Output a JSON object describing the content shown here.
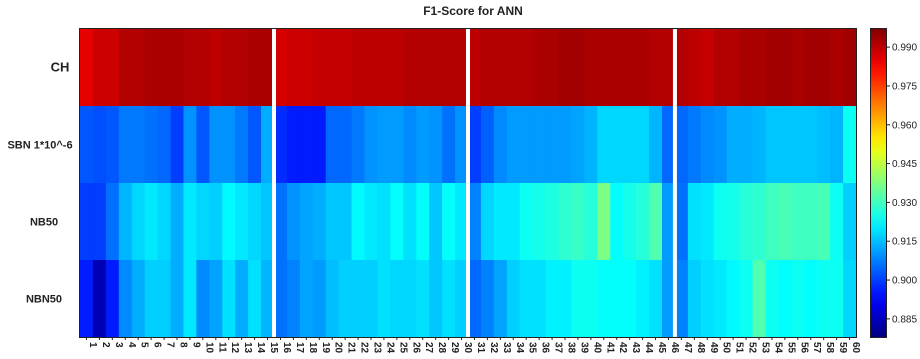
{
  "chart_data": {
    "type": "heatmap",
    "title": "F1-Score for ANN",
    "rows": [
      "CH",
      "SBN 1*10^-6",
      "NB50",
      "NBN50"
    ],
    "columns": [
      1,
      2,
      3,
      4,
      5,
      6,
      7,
      8,
      9,
      10,
      11,
      12,
      13,
      14,
      15,
      16,
      17,
      18,
      19,
      20,
      21,
      22,
      23,
      24,
      25,
      26,
      27,
      28,
      29,
      30,
      31,
      32,
      33,
      34,
      35,
      36,
      37,
      38,
      39,
      40,
      41,
      42,
      43,
      44,
      45,
      46,
      47,
      48,
      49,
      50,
      51,
      52,
      53,
      54,
      55,
      56,
      57,
      58,
      59,
      60
    ],
    "column_groups": [
      [
        1,
        15
      ],
      [
        16,
        30
      ],
      [
        31,
        46
      ],
      [
        47,
        60
      ]
    ],
    "colorbar": {
      "range": [
        0.878,
        0.997
      ],
      "ticks": [
        "0.990",
        "0.975",
        "0.960",
        "0.945",
        "0.930",
        "0.915",
        "0.900",
        "0.885"
      ],
      "colormap": "jet"
    },
    "values": [
      [
        0.985,
        0.988,
        0.988,
        0.991,
        0.991,
        0.992,
        0.992,
        0.992,
        0.991,
        0.991,
        0.99,
        0.991,
        0.991,
        0.992,
        0.992,
        0.987,
        0.988,
        0.988,
        0.989,
        0.989,
        0.989,
        0.99,
        0.99,
        0.99,
        0.99,
        0.991,
        0.991,
        0.991,
        0.991,
        0.991,
        0.99,
        0.991,
        0.991,
        0.991,
        0.991,
        0.992,
        0.992,
        0.993,
        0.993,
        0.992,
        0.992,
        0.992,
        0.992,
        0.992,
        0.991,
        0.991,
        0.991,
        0.99,
        0.989,
        0.991,
        0.991,
        0.992,
        0.992,
        0.993,
        0.993,
        0.992,
        0.993,
        0.993,
        0.992,
        0.993
      ],
      [
        0.903,
        0.902,
        0.903,
        0.907,
        0.907,
        0.906,
        0.905,
        0.9,
        0.91,
        0.903,
        0.91,
        0.91,
        0.907,
        0.903,
        0.913,
        0.898,
        0.896,
        0.896,
        0.896,
        0.905,
        0.905,
        0.907,
        0.91,
        0.911,
        0.911,
        0.909,
        0.911,
        0.91,
        0.906,
        0.91,
        0.9,
        0.904,
        0.909,
        0.911,
        0.911,
        0.911,
        0.911,
        0.911,
        0.912,
        0.914,
        0.918,
        0.918,
        0.918,
        0.918,
        0.914,
        0.905,
        0.905,
        0.907,
        0.909,
        0.91,
        0.913,
        0.913,
        0.914,
        0.916,
        0.916,
        0.916,
        0.916,
        0.915,
        0.914,
        0.924
      ],
      [
        0.9,
        0.9,
        0.906,
        0.914,
        0.918,
        0.92,
        0.918,
        0.913,
        0.92,
        0.918,
        0.917,
        0.922,
        0.92,
        0.918,
        0.916,
        0.906,
        0.91,
        0.912,
        0.913,
        0.916,
        0.916,
        0.922,
        0.92,
        0.919,
        0.923,
        0.919,
        0.923,
        0.916,
        0.923,
        0.92,
        0.908,
        0.918,
        0.92,
        0.92,
        0.924,
        0.925,
        0.926,
        0.928,
        0.929,
        0.927,
        0.937,
        0.923,
        0.925,
        0.927,
        0.932,
        0.911,
        0.906,
        0.919,
        0.92,
        0.924,
        0.925,
        0.927,
        0.928,
        0.93,
        0.931,
        0.93,
        0.93,
        0.931,
        0.924,
        0.917
      ],
      [
        0.896,
        0.884,
        0.896,
        0.909,
        0.913,
        0.917,
        0.917,
        0.913,
        0.92,
        0.909,
        0.912,
        0.919,
        0.913,
        0.919,
        0.914,
        0.906,
        0.908,
        0.912,
        0.911,
        0.915,
        0.917,
        0.917,
        0.917,
        0.919,
        0.918,
        0.918,
        0.919,
        0.916,
        0.919,
        0.917,
        0.905,
        0.908,
        0.912,
        0.917,
        0.919,
        0.919,
        0.921,
        0.921,
        0.924,
        0.924,
        0.923,
        0.923,
        0.923,
        0.921,
        0.919,
        0.911,
        0.908,
        0.917,
        0.919,
        0.92,
        0.922,
        0.924,
        0.932,
        0.924,
        0.923,
        0.924,
        0.923,
        0.924,
        0.924,
        0.918
      ]
    ]
  }
}
